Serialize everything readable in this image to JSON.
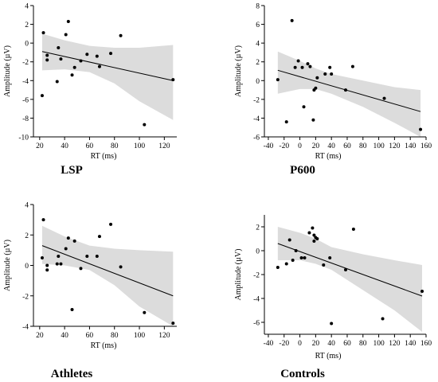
{
  "chart_data": [
    {
      "type": "scatter",
      "title": "LSP",
      "xlabel": "RT (ms)",
      "ylabel": "Amplitude (µV)",
      "xlim": [
        15,
        130
      ],
      "ylim": [
        -10,
        4
      ],
      "xticks": [
        20,
        40,
        60,
        80,
        100,
        120
      ],
      "yticks": [
        -10,
        -8,
        -6,
        -4,
        -2,
        0,
        2,
        4
      ],
      "points": [
        [
          22,
          -5.6
        ],
        [
          23,
          1.1
        ],
        [
          26,
          -1.3
        ],
        [
          26,
          -1.8
        ],
        [
          34,
          -4.1
        ],
        [
          35,
          -0.5
        ],
        [
          37,
          -1.7
        ],
        [
          41,
          0.9
        ],
        [
          43,
          2.3
        ],
        [
          46,
          -3.4
        ],
        [
          48,
          -2.6
        ],
        [
          53,
          -1.9
        ],
        [
          58,
          -1.2
        ],
        [
          66,
          -1.4
        ],
        [
          68,
          -2.5
        ],
        [
          77,
          -1.1
        ],
        [
          85,
          0.8
        ],
        [
          104,
          -8.7
        ],
        [
          127,
          -3.9
        ]
      ],
      "fit": [
        [
          22,
          -0.9
        ],
        [
          127,
          -4.0
        ]
      ],
      "band": {
        "x": [
          22,
          40,
          60,
          80,
          100,
          127
        ],
        "upper": [
          1.0,
          0.3,
          -0.3,
          -0.5,
          -0.5,
          -0.2
        ],
        "lower": [
          -2.9,
          -2.8,
          -3.1,
          -4.3,
          -6.2,
          -8.2
        ]
      }
    },
    {
      "type": "scatter",
      "title": "P600",
      "xlabel": "RT (ms)",
      "ylabel": "Amplitude (µV)",
      "xlim": [
        -45,
        160
      ],
      "ylim": [
        -6,
        8
      ],
      "xticks": [
        -40,
        -20,
        0,
        20,
        40,
        60,
        80,
        100,
        120,
        140,
        160
      ],
      "yticks": [
        -6,
        -4,
        -2,
        0,
        2,
        4,
        6,
        8
      ],
      "points": [
        [
          -28,
          0.1
        ],
        [
          -17,
          -4.4
        ],
        [
          -10,
          6.4
        ],
        [
          -6,
          1.4
        ],
        [
          -2,
          2.1
        ],
        [
          3,
          1.4
        ],
        [
          5,
          -2.8
        ],
        [
          10,
          1.8
        ],
        [
          13,
          1.5
        ],
        [
          17,
          -4.2
        ],
        [
          18,
          -1.0
        ],
        [
          20,
          -0.8
        ],
        [
          22,
          0.3
        ],
        [
          32,
          0.7
        ],
        [
          38,
          1.4
        ],
        [
          40,
          0.7
        ],
        [
          58,
          -1.0
        ],
        [
          67,
          1.5
        ],
        [
          107,
          -1.9
        ],
        [
          153,
          -5.2
        ]
      ],
      "fit": [
        [
          -28,
          1.1
        ],
        [
          153,
          -3.3
        ]
      ],
      "band": {
        "x": [
          -28,
          0,
          20,
          40,
          80,
          120,
          153
        ],
        "upper": [
          3.1,
          2.1,
          1.3,
          0.7,
          0.0,
          -0.7,
          -1.0
        ],
        "lower": [
          -1.4,
          -0.9,
          -0.9,
          -1.4,
          -2.8,
          -4.5,
          -6.0
        ]
      }
    },
    {
      "type": "scatter",
      "title": "Athletes",
      "xlabel": "RT (ms)",
      "ylabel": "Amplitude (µV)",
      "xlim": [
        15,
        130
      ],
      "ylim": [
        -4,
        4
      ],
      "xticks": [
        20,
        40,
        60,
        80,
        100,
        120
      ],
      "yticks": [
        -4,
        -2,
        0,
        2,
        4
      ],
      "points": [
        [
          22,
          0.5
        ],
        [
          23,
          3.0
        ],
        [
          26,
          -0.3
        ],
        [
          26,
          0.0
        ],
        [
          34,
          0.1
        ],
        [
          35,
          0.6
        ],
        [
          37,
          0.1
        ],
        [
          41,
          1.1
        ],
        [
          43,
          1.8
        ],
        [
          46,
          -2.9
        ],
        [
          48,
          1.6
        ],
        [
          53,
          -0.2
        ],
        [
          58,
          0.6
        ],
        [
          66,
          0.6
        ],
        [
          68,
          1.9
        ],
        [
          77,
          2.7
        ],
        [
          85,
          -0.1
        ],
        [
          104,
          -3.1
        ],
        [
          127,
          -3.8
        ]
      ],
      "fit": [
        [
          22,
          1.3
        ],
        [
          127,
          -2.0
        ]
      ],
      "band": {
        "x": [
          22,
          40,
          60,
          80,
          100,
          127
        ],
        "upper": [
          2.6,
          1.9,
          1.3,
          1.1,
          1.0,
          0.9
        ],
        "lower": [
          0.1,
          0.0,
          -0.3,
          -1.3,
          -2.7,
          -4.0
        ]
      }
    },
    {
      "type": "scatter",
      "title": "Controls",
      "xlabel": "RT (ms)",
      "ylabel": "Amplitude (µV)",
      "xlim": [
        -45,
        160
      ],
      "ylim": [
        -7,
        3
      ],
      "xticks": [
        -40,
        -20,
        0,
        20,
        40,
        60,
        80,
        100,
        120,
        140,
        160
      ],
      "yticks": [
        -6,
        -4,
        -2,
        0,
        2
      ],
      "points": [
        [
          -28,
          -1.4
        ],
        [
          -17,
          -1.1
        ],
        [
          -13,
          0.9
        ],
        [
          -9,
          -0.8
        ],
        [
          -5,
          0.0
        ],
        [
          2,
          -0.6
        ],
        [
          6,
          -0.6
        ],
        [
          12,
          1.5
        ],
        [
          16,
          1.9
        ],
        [
          18,
          0.8
        ],
        [
          18,
          1.3
        ],
        [
          20,
          1.1
        ],
        [
          22,
          1.0
        ],
        [
          30,
          -1.2
        ],
        [
          38,
          -0.6
        ],
        [
          40,
          -6.1
        ],
        [
          58,
          -1.6
        ],
        [
          68,
          1.8
        ],
        [
          105,
          -5.7
        ],
        [
          155,
          -3.4
        ]
      ],
      "fit": [
        [
          -28,
          0.6
        ],
        [
          155,
          -3.8
        ]
      ],
      "band": {
        "x": [
          -28,
          0,
          20,
          40,
          80,
          120,
          155
        ],
        "upper": [
          2.0,
          1.5,
          1.0,
          0.3,
          -0.3,
          -0.8,
          -1.2
        ],
        "lower": [
          -0.8,
          -0.8,
          -1.1,
          -1.6,
          -3.3,
          -5.0,
          -6.8
        ]
      }
    }
  ]
}
